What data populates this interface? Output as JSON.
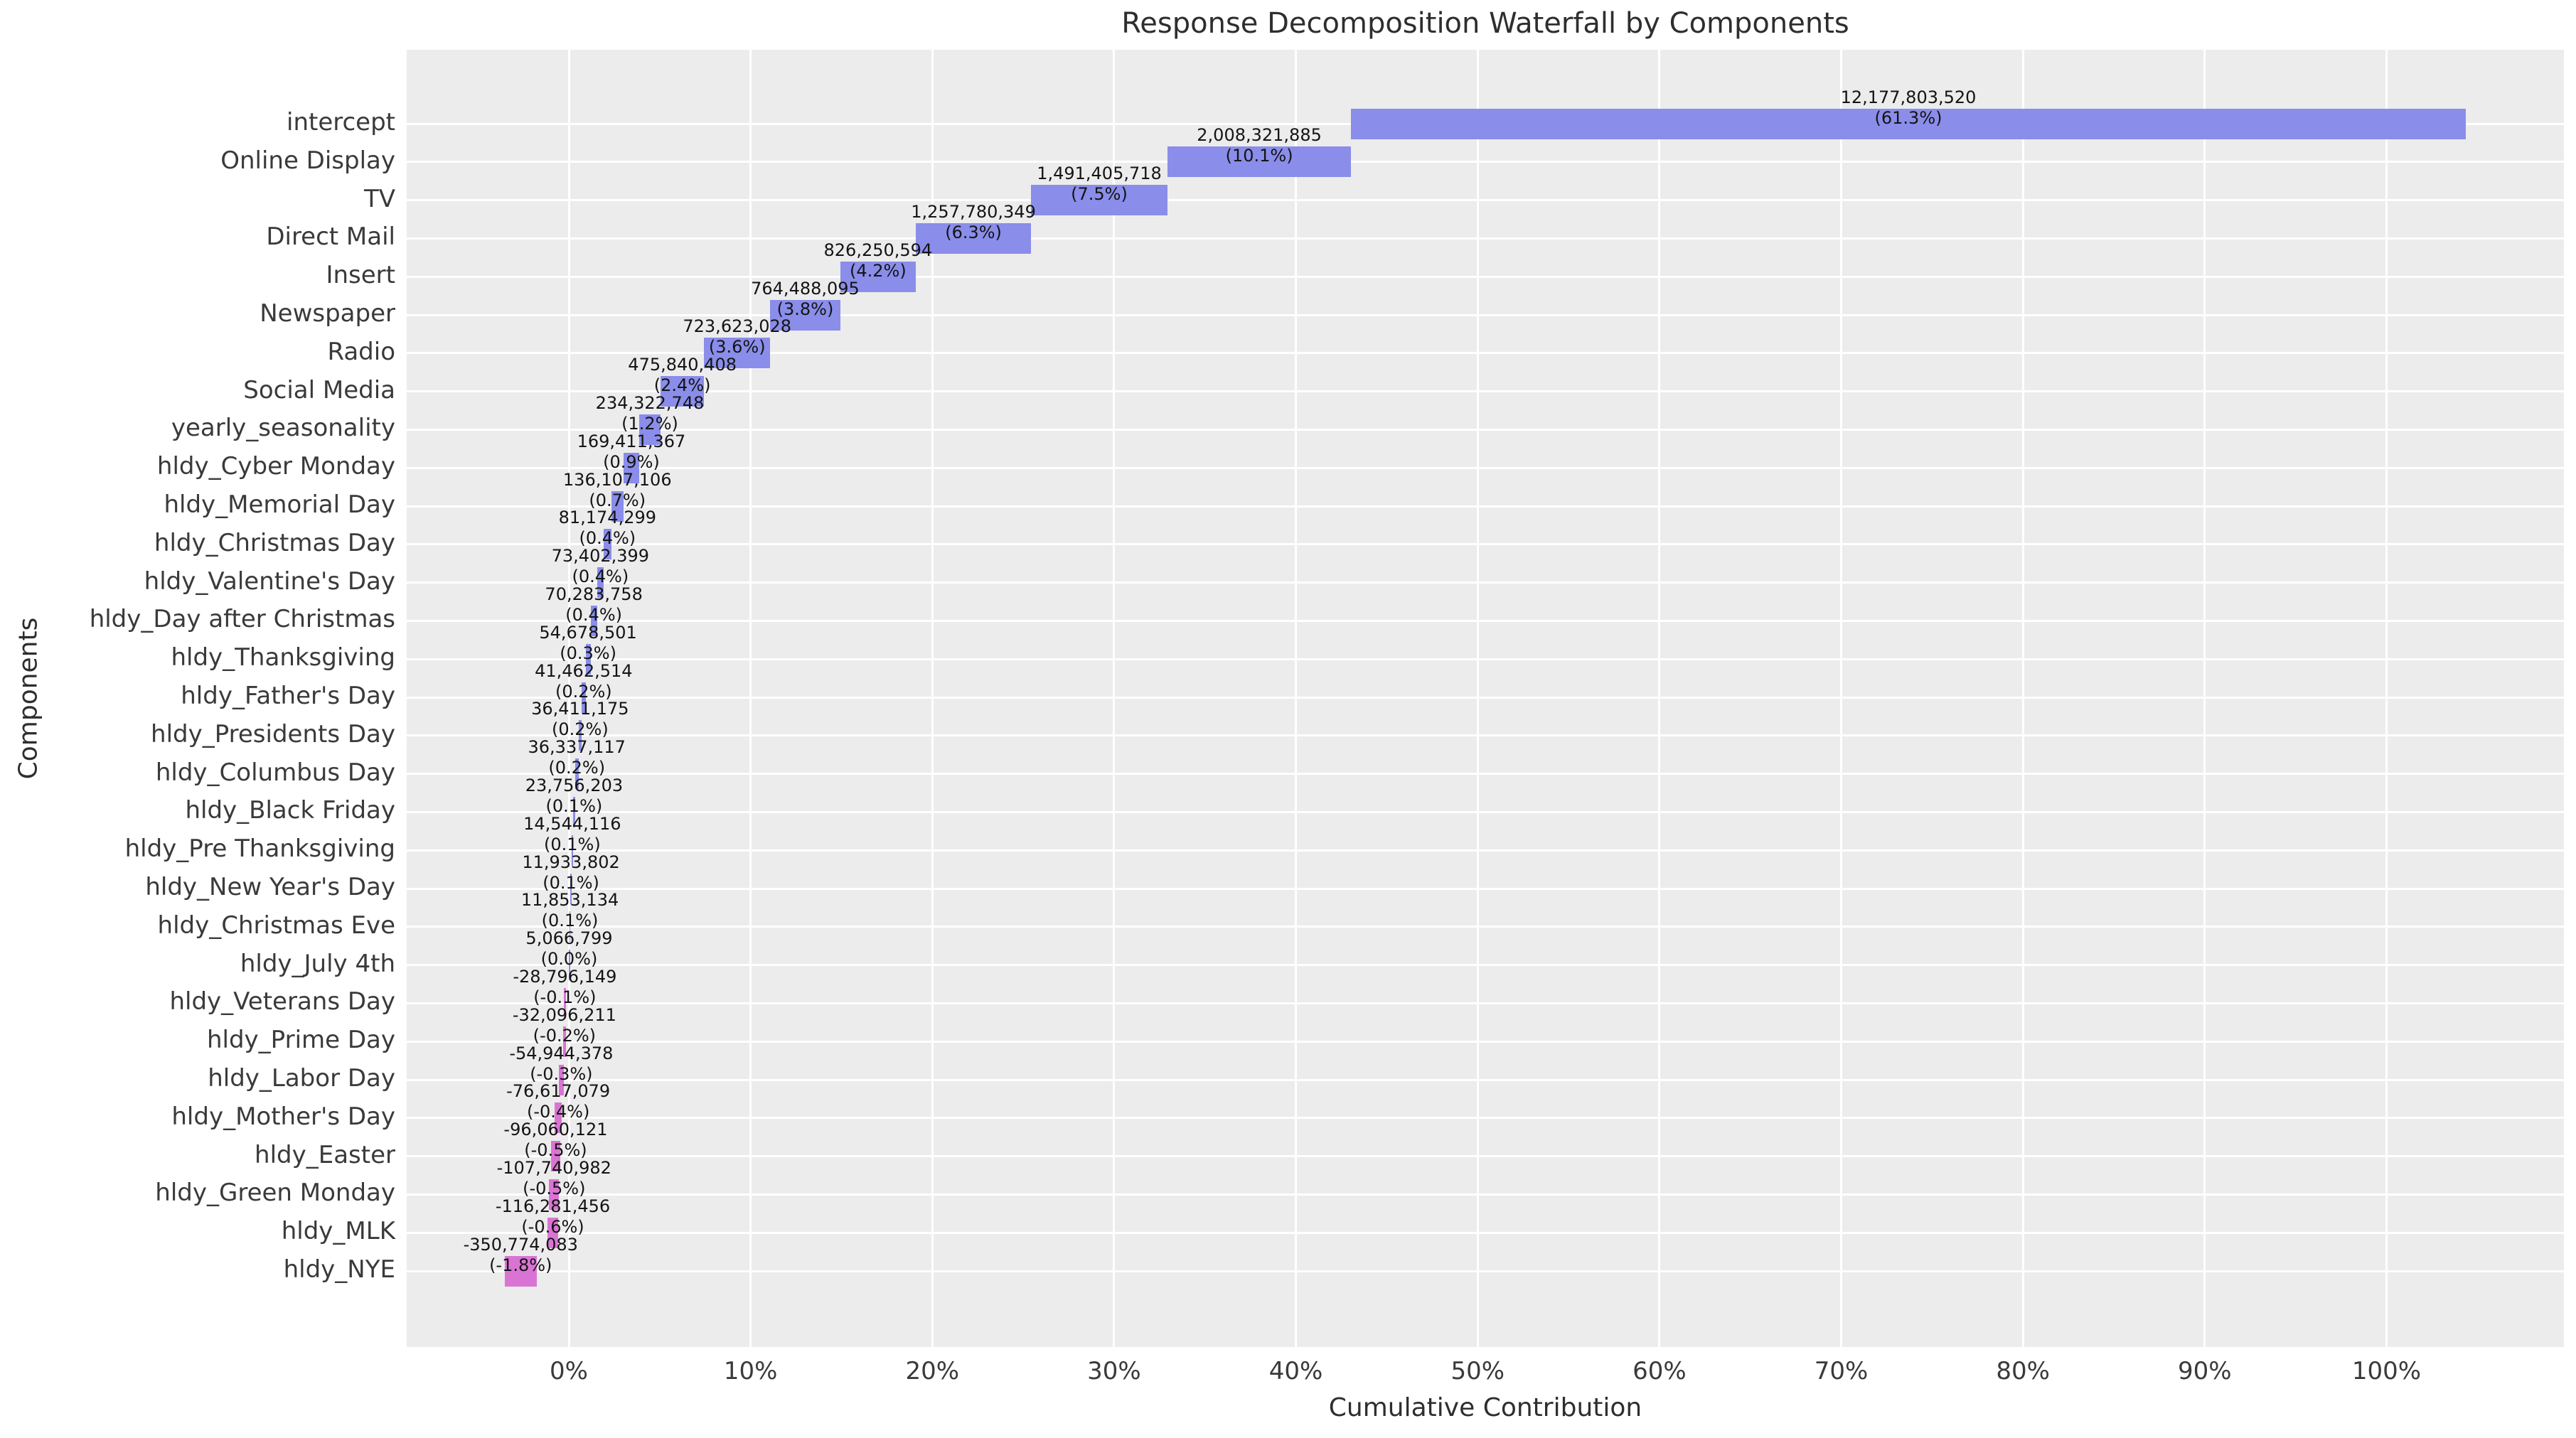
{
  "chart_data": {
    "type": "bar",
    "subtype": "horizontal-waterfall",
    "title": "Response Decomposition Waterfall by Components",
    "xlabel": "Cumulative Contribution",
    "ylabel": "Components",
    "grid": true,
    "legend": "none",
    "xlim_pct": [
      -8.9,
      109.7
    ],
    "x_ticks": [
      {
        "value": 0,
        "label": "0%"
      },
      {
        "value": 10,
        "label": "10%"
      },
      {
        "value": 20,
        "label": "20%"
      },
      {
        "value": 30,
        "label": "30%"
      },
      {
        "value": 40,
        "label": "40%"
      },
      {
        "value": 50,
        "label": "50%"
      },
      {
        "value": 60,
        "label": "60%"
      },
      {
        "value": 70,
        "label": "70%"
      },
      {
        "value": 80,
        "label": "80%"
      },
      {
        "value": 90,
        "label": "90%"
      },
      {
        "value": 100,
        "label": "100%"
      }
    ],
    "colors": {
      "positive_bar": "#8a8de9",
      "negative_bar": "#da74d4",
      "panel_background": "#ececec",
      "gridline": "#ffffff",
      "text": "#2e2e2e",
      "tick_text": "#3a3a3a",
      "value_text": "#141414"
    },
    "components": [
      {
        "label": "intercept",
        "value": 12177803520,
        "value_label": "12,177,803,520",
        "pct": 61.3,
        "pct_label": "(61.3%)",
        "bar_start_pct": 43.04,
        "bar_end_pct": 104.35,
        "sign": "positive"
      },
      {
        "label": "Online Display",
        "value": 2008321885,
        "value_label": "2,008,321,885",
        "pct": 10.1,
        "pct_label": "(10.1%)",
        "bar_start_pct": 32.93,
        "bar_end_pct": 43.04,
        "sign": "positive"
      },
      {
        "label": "TV",
        "value": 1491405718,
        "value_label": "1,491,405,718",
        "pct": 7.5,
        "pct_label": "(7.5%)",
        "bar_start_pct": 25.43,
        "bar_end_pct": 32.93,
        "sign": "positive"
      },
      {
        "label": "Direct Mail",
        "value": 1257780349,
        "value_label": "1,257,780,349",
        "pct": 6.3,
        "pct_label": "(6.3%)",
        "bar_start_pct": 19.09,
        "bar_end_pct": 25.43,
        "sign": "positive"
      },
      {
        "label": "Insert",
        "value": 826250594,
        "value_label": "826,250,594",
        "pct": 4.2,
        "pct_label": "(4.2%)",
        "bar_start_pct": 14.93,
        "bar_end_pct": 19.09,
        "sign": "positive"
      },
      {
        "label": "Newspaper",
        "value": 764488095,
        "value_label": "764,488,095",
        "pct": 3.8,
        "pct_label": "(3.8%)",
        "bar_start_pct": 11.08,
        "bar_end_pct": 14.93,
        "sign": "positive"
      },
      {
        "label": "Radio",
        "value": 723623028,
        "value_label": "723,623,028",
        "pct": 3.6,
        "pct_label": "(3.6%)",
        "bar_start_pct": 7.44,
        "bar_end_pct": 11.08,
        "sign": "positive"
      },
      {
        "label": "Social Media",
        "value": 475840408,
        "value_label": "475,840,408",
        "pct": 2.4,
        "pct_label": "(2.4%)",
        "bar_start_pct": 5.05,
        "bar_end_pct": 7.44,
        "sign": "positive"
      },
      {
        "label": "yearly_seasonality",
        "value": 234322748,
        "value_label": "234,322,748",
        "pct": 1.2,
        "pct_label": "(1.2%)",
        "bar_start_pct": 3.87,
        "bar_end_pct": 5.05,
        "sign": "positive"
      },
      {
        "label": "hldy_Cyber Monday",
        "value": 169411367,
        "value_label": "169,411,367",
        "pct": 0.9,
        "pct_label": "(0.9%)",
        "bar_start_pct": 3.01,
        "bar_end_pct": 3.87,
        "sign": "positive"
      },
      {
        "label": "hldy_Memorial Day",
        "value": 136107106,
        "value_label": "136,107,106",
        "pct": 0.7,
        "pct_label": "(0.7%)",
        "bar_start_pct": 2.33,
        "bar_end_pct": 3.01,
        "sign": "positive"
      },
      {
        "label": "hldy_Christmas Day",
        "value": 81174299,
        "value_label": "81,174,299",
        "pct": 0.4,
        "pct_label": "(0.4%)",
        "bar_start_pct": 1.92,
        "bar_end_pct": 2.33,
        "sign": "positive"
      },
      {
        "label": "hldy_Valentine's Day",
        "value": 73402399,
        "value_label": "73,402,399",
        "pct": 0.4,
        "pct_label": "(0.4%)",
        "bar_start_pct": 1.55,
        "bar_end_pct": 1.92,
        "sign": "positive"
      },
      {
        "label": "hldy_Day after Christmas",
        "value": 70283758,
        "value_label": "70,283,758",
        "pct": 0.4,
        "pct_label": "(0.4%)",
        "bar_start_pct": 1.2,
        "bar_end_pct": 1.55,
        "sign": "positive"
      },
      {
        "label": "hldy_Thanksgiving",
        "value": 54678501,
        "value_label": "54,678,501",
        "pct": 0.3,
        "pct_label": "(0.3%)",
        "bar_start_pct": 0.92,
        "bar_end_pct": 1.2,
        "sign": "positive"
      },
      {
        "label": "hldy_Father's Day",
        "value": 41462514,
        "value_label": "41,462,514",
        "pct": 0.2,
        "pct_label": "(0.2%)",
        "bar_start_pct": 0.71,
        "bar_end_pct": 0.92,
        "sign": "positive"
      },
      {
        "label": "hldy_Presidents Day",
        "value": 36411175,
        "value_label": "36,411,175",
        "pct": 0.2,
        "pct_label": "(0.2%)",
        "bar_start_pct": 0.53,
        "bar_end_pct": 0.71,
        "sign": "positive"
      },
      {
        "label": "hldy_Columbus Day",
        "value": 36337117,
        "value_label": "36,337,117",
        "pct": 0.2,
        "pct_label": "(0.2%)",
        "bar_start_pct": 0.35,
        "bar_end_pct": 0.53,
        "sign": "positive"
      },
      {
        "label": "hldy_Black Friday",
        "value": 23756203,
        "value_label": "23,756,203",
        "pct": 0.1,
        "pct_label": "(0.1%)",
        "bar_start_pct": 0.23,
        "bar_end_pct": 0.35,
        "sign": "positive"
      },
      {
        "label": "hldy_Pre Thanksgiving",
        "value": 14544116,
        "value_label": "14,544,116",
        "pct": 0.1,
        "pct_label": "(0.1%)",
        "bar_start_pct": 0.15,
        "bar_end_pct": 0.23,
        "sign": "positive"
      },
      {
        "label": "hldy_New Year's Day",
        "value": 11933802,
        "value_label": "11,933,802",
        "pct": 0.1,
        "pct_label": "(0.1%)",
        "bar_start_pct": 0.09,
        "bar_end_pct": 0.15,
        "sign": "positive"
      },
      {
        "label": "hldy_Christmas Eve",
        "value": 11853134,
        "value_label": "11,853,134",
        "pct": 0.1,
        "pct_label": "(0.1%)",
        "bar_start_pct": 0.03,
        "bar_end_pct": 0.09,
        "sign": "positive"
      },
      {
        "label": "hldy_July 4th",
        "value": 5066799,
        "value_label": "5,066,799",
        "pct": 0.0,
        "pct_label": "(0.0%)",
        "bar_start_pct": 0.01,
        "bar_end_pct": 0.03,
        "sign": "positive"
      },
      {
        "label": "hldy_Veterans Day",
        "value": -28796149,
        "value_label": "-28,796,149",
        "pct": -0.1,
        "pct_label": "(-0.1%)",
        "bar_start_pct": -0.29,
        "bar_end_pct": -0.15,
        "sign": "negative"
      },
      {
        "label": "hldy_Prime Day",
        "value": -32096211,
        "value_label": "-32,096,211",
        "pct": -0.2,
        "pct_label": "(-0.2%)",
        "bar_start_pct": -0.32,
        "bar_end_pct": -0.16,
        "sign": "negative"
      },
      {
        "label": "hldy_Labor Day",
        "value": -54944378,
        "value_label": "-54,944,378",
        "pct": -0.3,
        "pct_label": "(-0.3%)",
        "bar_start_pct": -0.55,
        "bar_end_pct": -0.28,
        "sign": "negative"
      },
      {
        "label": "hldy_Mother's Day",
        "value": -76617079,
        "value_label": "-76,617,079",
        "pct": -0.4,
        "pct_label": "(-0.4%)",
        "bar_start_pct": -0.77,
        "bar_end_pct": -0.39,
        "sign": "negative"
      },
      {
        "label": "hldy_Easter",
        "value": -96060121,
        "value_label": "-96,060,121",
        "pct": -0.5,
        "pct_label": "(-0.5%)",
        "bar_start_pct": -0.97,
        "bar_end_pct": -0.48,
        "sign": "negative"
      },
      {
        "label": "hldy_Green Monday",
        "value": -107740982,
        "value_label": "-107,740,982",
        "pct": -0.5,
        "pct_label": "(-0.5%)",
        "bar_start_pct": -1.08,
        "bar_end_pct": -0.54,
        "sign": "negative"
      },
      {
        "label": "hldy_MLK",
        "value": -116281456,
        "value_label": "-116,281,456",
        "pct": -0.6,
        "pct_label": "(-0.6%)",
        "bar_start_pct": -1.17,
        "bar_end_pct": -0.59,
        "sign": "negative"
      },
      {
        "label": "hldy_NYE",
        "value": -350774083,
        "value_label": "-350,774,083",
        "pct": -1.8,
        "pct_label": "(-1.8%)",
        "bar_start_pct": -3.53,
        "bar_end_pct": -1.77,
        "sign": "negative"
      }
    ]
  }
}
